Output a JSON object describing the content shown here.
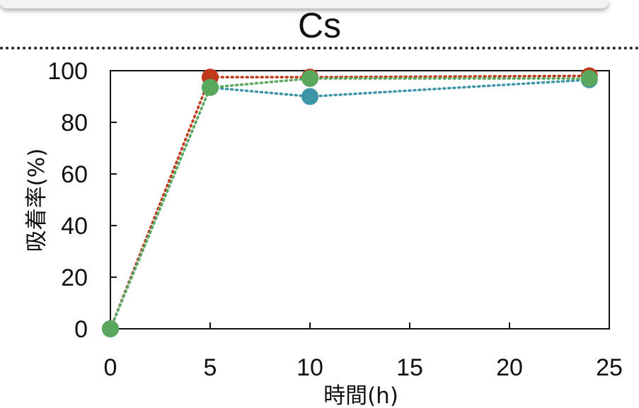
{
  "chart_data": {
    "type": "line",
    "title": "Cs",
    "xlabel": "時間(h)",
    "ylabel": "吸着率(%)",
    "xlim": [
      0,
      25
    ],
    "ylim": [
      0,
      100
    ],
    "x_ticks": [
      0,
      5,
      10,
      15,
      20,
      25
    ],
    "y_ticks": [
      0,
      20,
      40,
      60,
      80,
      100
    ],
    "x_tick_labels": [
      "0",
      "5",
      "10",
      "15",
      "20",
      "25"
    ],
    "y_tick_labels": [
      "0",
      "20",
      "40",
      "60",
      "80",
      "100"
    ],
    "grid": false,
    "legend": "none",
    "line_style": "dotted",
    "series": [
      {
        "color": "#c0391b",
        "x": [
          0,
          5,
          10,
          24
        ],
        "y": [
          0,
          97.5,
          97.5,
          98
        ]
      },
      {
        "color": "#3e95a8",
        "x": [
          0,
          5,
          10,
          24
        ],
        "y": [
          0,
          93.5,
          90,
          96.5
        ]
      },
      {
        "color": "#5aa75e",
        "x": [
          0,
          5,
          10,
          24
        ],
        "y": [
          0,
          93.5,
          97,
          97
        ]
      }
    ]
  }
}
